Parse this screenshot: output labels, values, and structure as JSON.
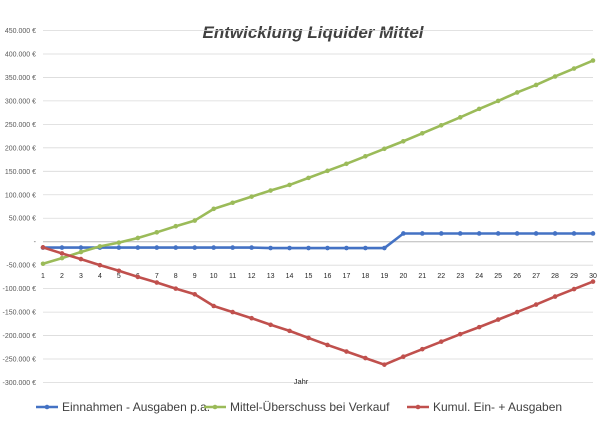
{
  "chart_data": {
    "type": "line",
    "title": "Entwicklung Liquider Mittel",
    "xlabel": "Jahr",
    "ylabel": "",
    "x": [
      1,
      2,
      3,
      4,
      5,
      6,
      7,
      8,
      9,
      10,
      11,
      12,
      13,
      14,
      15,
      16,
      17,
      18,
      19,
      20,
      21,
      22,
      23,
      24,
      25,
      26,
      27,
      28,
      29,
      30
    ],
    "ylim": [
      -300000,
      450000
    ],
    "y_ticks": [
      "450.000 €",
      "400.000 €",
      "350.000 €",
      "300.000 €",
      "250.000 €",
      "200.000 €",
      "150.000 €",
      "100.000 €",
      "50.000 €",
      "-",
      "-50.000 €",
      "-100.000 €",
      "-150.000 €",
      "-200.000 €",
      "-250.000 €",
      "-300.000 €"
    ],
    "grid": true,
    "legend_position": "bottom",
    "series": [
      {
        "name": "Einnahmen - Ausgaben p.a.",
        "color": "#4472C4",
        "values": [
          -12500,
          -12500,
          -12500,
          -12500,
          -12500,
          -12500,
          -12500,
          -12500,
          -12500,
          -12500,
          -12500,
          -12500,
          -13500,
          -13500,
          -13500,
          -13500,
          -13500,
          -13500,
          -13500,
          17500,
          17500,
          17500,
          17500,
          17500,
          17500,
          17500,
          17500,
          17500,
          17500,
          17500
        ]
      },
      {
        "name": "Mittel-Überschuss bei Verkauf",
        "color": "#9BBB59",
        "values": [
          -47000,
          -35000,
          -22000,
          -10000,
          -2000,
          8000,
          20000,
          33000,
          45000,
          70000,
          83000,
          96000,
          109000,
          121000,
          136000,
          151000,
          166000,
          182000,
          198000,
          214000,
          231000,
          248000,
          265000,
          283000,
          300000,
          318000,
          334000,
          352000,
          369000,
          386000
        ]
      },
      {
        "name": "Kumul. Ein- + Ausgaben",
        "color": "#C0504D",
        "values": [
          -12000,
          -25000,
          -37000,
          -50000,
          -62000,
          -75000,
          -87000,
          -100000,
          -112000,
          -137000,
          -150000,
          -163000,
          -177000,
          -190000,
          -205000,
          -220000,
          -234000,
          -248000,
          -262000,
          -245000,
          -229000,
          -213000,
          -197000,
          -182000,
          -166000,
          -150000,
          -134000,
          -117000,
          -101000,
          -85000
        ]
      }
    ]
  }
}
